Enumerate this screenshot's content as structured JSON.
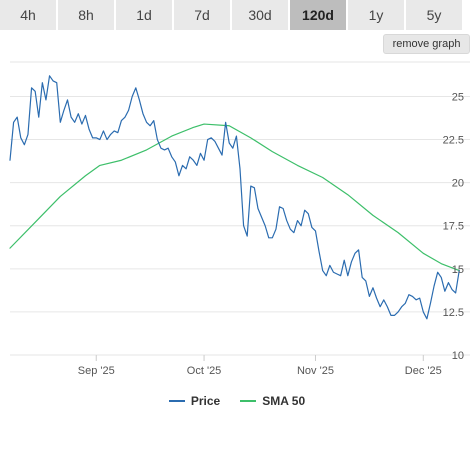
{
  "tabs": [
    {
      "label": "4h",
      "active": false
    },
    {
      "label": "8h",
      "active": false
    },
    {
      "label": "1d",
      "active": false
    },
    {
      "label": "7d",
      "active": false
    },
    {
      "label": "30d",
      "active": false
    },
    {
      "label": "120d",
      "active": true
    },
    {
      "label": "1y",
      "active": false
    },
    {
      "label": "5y",
      "active": false
    }
  ],
  "remove_graph_label": "remove graph",
  "chart_data": {
    "type": "line",
    "title": "",
    "xlabel": "",
    "ylabel": "",
    "ylim": [
      10,
      27
    ],
    "yticks": [
      10,
      12.5,
      15,
      17.5,
      20,
      22.5,
      25
    ],
    "ytick_labels": [
      "10",
      "12.5",
      "15",
      "17.5",
      "20",
      "22.5",
      "25"
    ],
    "xlim": [
      "2025-08-08",
      "2025-12-14"
    ],
    "xticks": [
      {
        "date": "2025-09-01",
        "label": "Sep '25"
      },
      {
        "date": "2025-10-01",
        "label": "Oct '25"
      },
      {
        "date": "2025-11-01",
        "label": "Nov '25"
      },
      {
        "date": "2025-12-01",
        "label": "Dec '25"
      }
    ],
    "grid": true,
    "legend_position": "bottom-center",
    "series": [
      {
        "name": "Price",
        "color": "#2b6cb0",
        "points": [
          [
            "2025-08-08",
            21.3
          ],
          [
            "2025-08-09",
            23.5
          ],
          [
            "2025-08-10",
            23.8
          ],
          [
            "2025-08-11",
            22.6
          ],
          [
            "2025-08-12",
            22.2
          ],
          [
            "2025-08-13",
            22.8
          ],
          [
            "2025-08-14",
            25.5
          ],
          [
            "2025-08-15",
            25.3
          ],
          [
            "2025-08-16",
            23.8
          ],
          [
            "2025-08-17",
            25.8
          ],
          [
            "2025-08-18",
            24.8
          ],
          [
            "2025-08-19",
            26.2
          ],
          [
            "2025-08-20",
            25.9
          ],
          [
            "2025-08-21",
            25.8
          ],
          [
            "2025-08-22",
            23.5
          ],
          [
            "2025-08-23",
            24.2
          ],
          [
            "2025-08-24",
            24.8
          ],
          [
            "2025-08-25",
            23.8
          ],
          [
            "2025-08-26",
            23.5
          ],
          [
            "2025-08-27",
            24.0
          ],
          [
            "2025-08-28",
            23.4
          ],
          [
            "2025-08-29",
            23.9
          ],
          [
            "2025-08-30",
            23.1
          ],
          [
            "2025-08-31",
            22.6
          ],
          [
            "2025-09-01",
            22.6
          ],
          [
            "2025-09-02",
            22.5
          ],
          [
            "2025-09-03",
            23.0
          ],
          [
            "2025-09-04",
            22.5
          ],
          [
            "2025-09-05",
            22.8
          ],
          [
            "2025-09-06",
            23.0
          ],
          [
            "2025-09-07",
            22.9
          ],
          [
            "2025-09-08",
            23.6
          ],
          [
            "2025-09-09",
            23.8
          ],
          [
            "2025-09-10",
            24.2
          ],
          [
            "2025-09-11",
            25.0
          ],
          [
            "2025-09-12",
            25.5
          ],
          [
            "2025-09-13",
            24.8
          ],
          [
            "2025-09-14",
            24.0
          ],
          [
            "2025-09-15",
            23.5
          ],
          [
            "2025-09-16",
            23.3
          ],
          [
            "2025-09-17",
            23.6
          ],
          [
            "2025-09-18",
            22.5
          ],
          [
            "2025-09-19",
            22.0
          ],
          [
            "2025-09-20",
            21.9
          ],
          [
            "2025-09-21",
            22.0
          ],
          [
            "2025-09-22",
            21.5
          ],
          [
            "2025-09-23",
            21.2
          ],
          [
            "2025-09-24",
            20.4
          ],
          [
            "2025-09-25",
            21.0
          ],
          [
            "2025-09-26",
            20.8
          ],
          [
            "2025-09-27",
            21.5
          ],
          [
            "2025-09-28",
            21.3
          ],
          [
            "2025-09-29",
            21.0
          ],
          [
            "2025-09-30",
            21.7
          ],
          [
            "2025-10-01",
            21.3
          ],
          [
            "2025-10-02",
            22.5
          ],
          [
            "2025-10-03",
            22.6
          ],
          [
            "2025-10-04",
            22.4
          ],
          [
            "2025-10-05",
            22.0
          ],
          [
            "2025-10-06",
            21.6
          ],
          [
            "2025-10-07",
            23.5
          ],
          [
            "2025-10-08",
            22.3
          ],
          [
            "2025-10-09",
            22.0
          ],
          [
            "2025-10-10",
            22.7
          ],
          [
            "2025-10-11",
            20.8
          ],
          [
            "2025-10-12",
            17.5
          ],
          [
            "2025-10-13",
            16.9
          ],
          [
            "2025-10-14",
            19.8
          ],
          [
            "2025-10-15",
            19.7
          ],
          [
            "2025-10-16",
            18.5
          ],
          [
            "2025-10-17",
            18.0
          ],
          [
            "2025-10-18",
            17.5
          ],
          [
            "2025-10-19",
            16.8
          ],
          [
            "2025-10-20",
            16.8
          ],
          [
            "2025-10-21",
            17.3
          ],
          [
            "2025-10-22",
            18.6
          ],
          [
            "2025-10-23",
            18.5
          ],
          [
            "2025-10-24",
            17.8
          ],
          [
            "2025-10-25",
            17.3
          ],
          [
            "2025-10-26",
            17.1
          ],
          [
            "2025-10-27",
            17.8
          ],
          [
            "2025-10-28",
            17.5
          ],
          [
            "2025-10-29",
            18.4
          ],
          [
            "2025-10-30",
            18.2
          ],
          [
            "2025-10-31",
            17.4
          ],
          [
            "2025-11-01",
            17.2
          ],
          [
            "2025-11-02",
            16.0
          ],
          [
            "2025-11-03",
            14.9
          ],
          [
            "2025-11-04",
            14.6
          ],
          [
            "2025-11-05",
            15.2
          ],
          [
            "2025-11-06",
            14.8
          ],
          [
            "2025-11-07",
            14.7
          ],
          [
            "2025-11-08",
            14.6
          ],
          [
            "2025-11-09",
            15.5
          ],
          [
            "2025-11-10",
            14.6
          ],
          [
            "2025-11-11",
            15.4
          ],
          [
            "2025-11-12",
            15.9
          ],
          [
            "2025-11-13",
            16.1
          ],
          [
            "2025-11-14",
            14.5
          ],
          [
            "2025-11-15",
            14.3
          ],
          [
            "2025-11-16",
            13.4
          ],
          [
            "2025-11-17",
            13.9
          ],
          [
            "2025-11-18",
            13.3
          ],
          [
            "2025-11-19",
            12.8
          ],
          [
            "2025-11-20",
            13.2
          ],
          [
            "2025-11-21",
            12.8
          ],
          [
            "2025-11-22",
            12.3
          ],
          [
            "2025-11-23",
            12.3
          ],
          [
            "2025-11-24",
            12.5
          ],
          [
            "2025-11-25",
            12.8
          ],
          [
            "2025-11-26",
            13.0
          ],
          [
            "2025-11-27",
            13.5
          ],
          [
            "2025-11-28",
            13.4
          ],
          [
            "2025-11-29",
            13.2
          ],
          [
            "2025-11-30",
            13.3
          ],
          [
            "2025-12-01",
            12.5
          ],
          [
            "2025-12-02",
            12.1
          ],
          [
            "2025-12-03",
            13.0
          ],
          [
            "2025-12-04",
            14.0
          ],
          [
            "2025-12-05",
            14.8
          ],
          [
            "2025-12-06",
            14.5
          ],
          [
            "2025-12-07",
            13.7
          ],
          [
            "2025-12-08",
            14.2
          ],
          [
            "2025-12-09",
            13.8
          ],
          [
            "2025-12-10",
            13.6
          ],
          [
            "2025-12-11",
            14.9
          ]
        ]
      },
      {
        "name": "SMA 50",
        "color": "#3dbf6a",
        "points": [
          [
            "2025-08-08",
            16.2
          ],
          [
            "2025-08-15",
            17.7
          ],
          [
            "2025-08-22",
            19.2
          ],
          [
            "2025-08-29",
            20.4
          ],
          [
            "2025-09-02",
            21.0
          ],
          [
            "2025-09-08",
            21.3
          ],
          [
            "2025-09-15",
            21.9
          ],
          [
            "2025-09-22",
            22.7
          ],
          [
            "2025-09-28",
            23.2
          ],
          [
            "2025-10-01",
            23.4
          ],
          [
            "2025-10-08",
            23.3
          ],
          [
            "2025-10-14",
            22.6
          ],
          [
            "2025-10-20",
            21.8
          ],
          [
            "2025-10-27",
            21.0
          ],
          [
            "2025-11-03",
            20.3
          ],
          [
            "2025-11-10",
            19.3
          ],
          [
            "2025-11-17",
            18.1
          ],
          [
            "2025-11-24",
            17.1
          ],
          [
            "2025-12-01",
            15.9
          ],
          [
            "2025-12-06",
            15.3
          ],
          [
            "2025-12-11",
            14.9
          ]
        ]
      }
    ]
  }
}
